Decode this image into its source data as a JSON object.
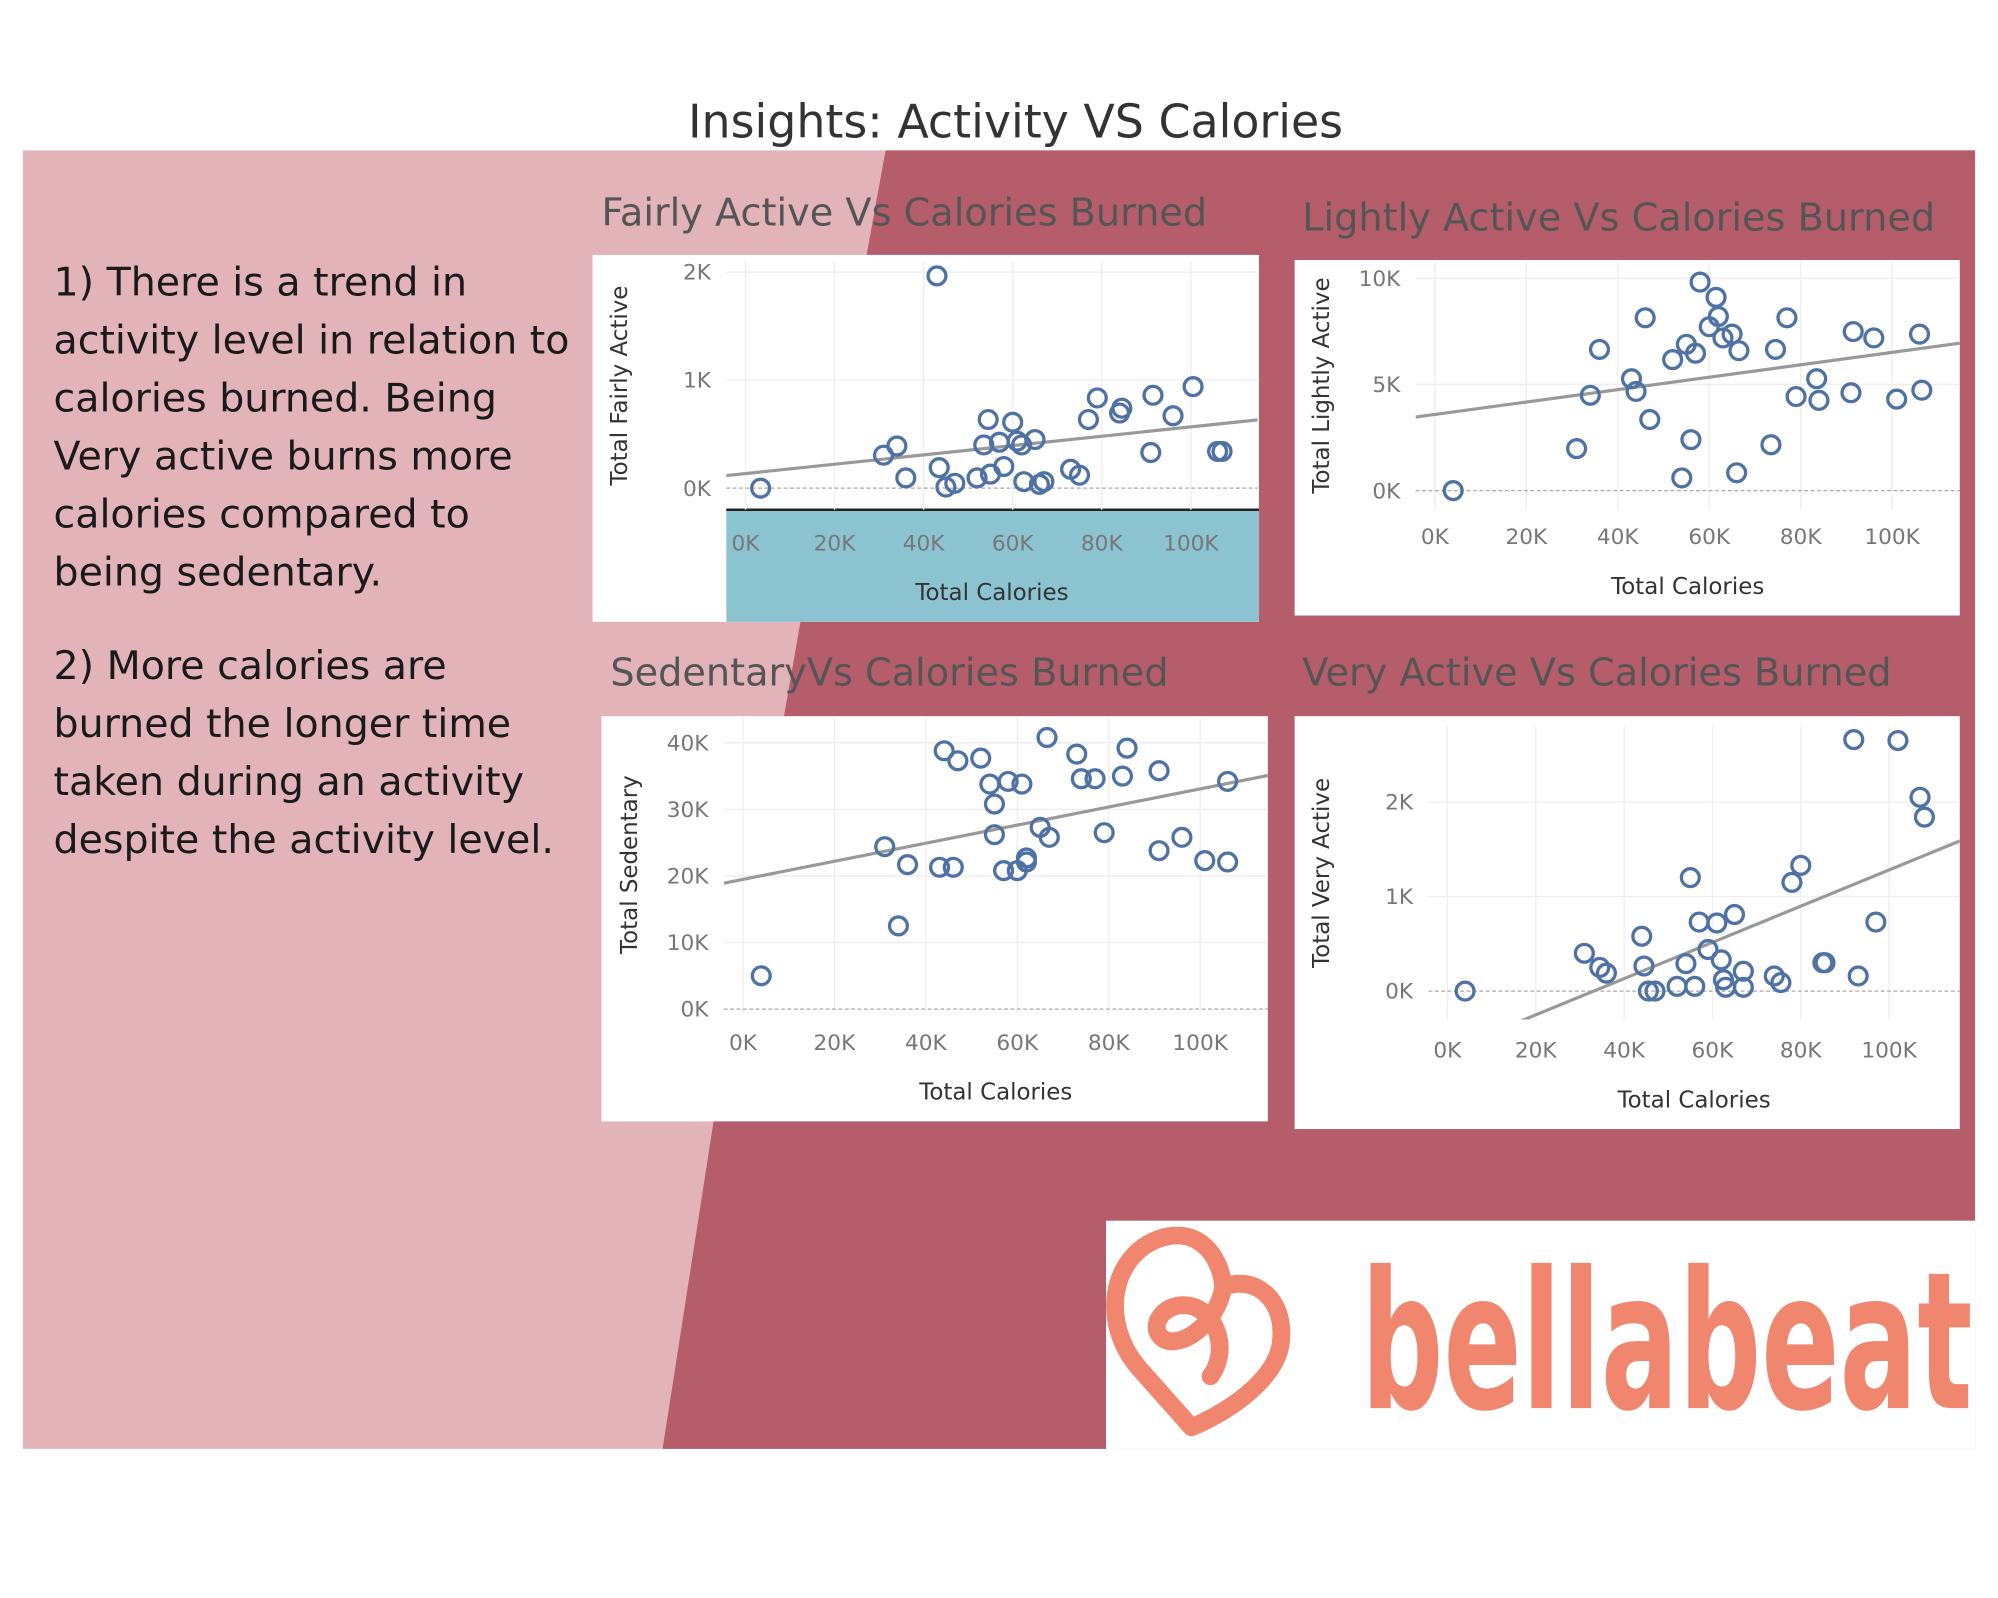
{
  "title": "Insights: Activity VS Calories",
  "insights": [
    [
      "1) There is a trend in",
      "activity level in relation to",
      "calories burned. Being",
      "Very active burns more",
      "calories compared to",
      "being sedentary."
    ],
    [
      "2) More calories are",
      "burned the longer time",
      "taken during an activity",
      "despite the activity level."
    ]
  ],
  "logo": "bellabeat",
  "chart_data": [
    {
      "type": "scatter",
      "title": "Fairly Active Vs Calories Burned",
      "x_label": "Total Calories",
      "y_label": "Total Fairly Active",
      "x": [
        3400,
        43000,
        31000,
        34000,
        36000,
        43500,
        45000,
        47000,
        52000,
        54500,
        53500,
        55000,
        57000,
        58000,
        60000,
        61000,
        62000,
        62500,
        65000,
        66000,
        67000,
        73000,
        75000,
        77000,
        79000,
        84000,
        84500,
        91000,
        91500,
        96000,
        100500,
        106000,
        107000
      ],
      "values": [
        0,
        1965,
        305,
        390,
        95,
        190,
        10,
        45,
        95,
        635,
        400,
        130,
        425,
        200,
        610,
        435,
        400,
        60,
        450,
        35,
        60,
        175,
        120,
        635,
        835,
        695,
        740,
        330,
        860,
        670,
        940,
        340,
        340
      ],
      "color": "#4e72a4",
      "trendline": true,
      "grid": true,
      "xlim": [
        -4300,
        115000
      ],
      "ylim": [
        -200,
        2100
      ],
      "xticks": [
        {
          "value": 0,
          "label": "0K"
        },
        {
          "value": 20000,
          "label": "20K"
        },
        {
          "value": 40000,
          "label": "40K"
        },
        {
          "value": 60000,
          "label": "60K"
        },
        {
          "value": 80000,
          "label": "80K"
        },
        {
          "value": 100000,
          "label": "100K"
        }
      ],
      "yticks": [
        {
          "value": 0,
          "label": "0K"
        },
        {
          "value": 1000,
          "label": "1K"
        },
        {
          "value": 2000,
          "label": "2K"
        }
      ]
    },
    {
      "type": "scatter",
      "title": "Lightly Active Vs Calories Burned",
      "x_label": "Total Calories",
      "y_label": "Total Lightly Active",
      "x": [
        4000,
        31000,
        34000,
        36000,
        43000,
        44000,
        46000,
        47000,
        52000,
        54000,
        55000,
        56000,
        57000,
        58000,
        60000,
        61500,
        62000,
        63000,
        65000,
        66500,
        66000,
        73500,
        74500,
        77000,
        79000,
        83500,
        84000,
        91000,
        91500,
        96000,
        101000,
        106000,
        106500
      ],
      "values": [
        0,
        1980,
        4490,
        6650,
        5270,
        4670,
        8140,
        3350,
        6170,
        600,
        6890,
        2400,
        6470,
        9820,
        7720,
        9100,
        8200,
        7190,
        7370,
        6590,
        840,
        2160,
        6650,
        8140,
        4430,
        5270,
        4250,
        4610,
        7490,
        7190,
        4310,
        7370,
        4730
      ],
      "color": "#4e72a4",
      "trendline": true,
      "grid": true,
      "xlim": [
        -4200,
        114800
      ],
      "ylim": [
        -900,
        10800
      ],
      "xticks": [
        {
          "value": 0,
          "label": "0K"
        },
        {
          "value": 20000,
          "label": "20K"
        },
        {
          "value": 40000,
          "label": "40K"
        },
        {
          "value": 60000,
          "label": "60K"
        },
        {
          "value": 80000,
          "label": "80K"
        },
        {
          "value": 100000,
          "label": "100K"
        }
      ],
      "yticks": [
        {
          "value": 0,
          "label": "0K"
        },
        {
          "value": 5000,
          "label": "5K"
        },
        {
          "value": 10000,
          "label": "10K"
        }
      ]
    },
    {
      "type": "scatter",
      "title": "SedentaryVs Calories Burned",
      "x_label": "Total Calories",
      "y_label": "Total Sedentary",
      "x": [
        4000,
        31000,
        34000,
        36000,
        43000,
        44000,
        46000,
        47000,
        52000,
        54000,
        55000,
        55000,
        57000,
        58000,
        60000,
        61000,
        62000,
        62000,
        65000,
        66500,
        67000,
        73000,
        74000,
        77000,
        79000,
        83000,
        84000,
        91000,
        91000,
        96000,
        101000,
        106000,
        106000
      ],
      "values": [
        5000,
        24400,
        12500,
        21700,
        21300,
        38800,
        21300,
        37300,
        37700,
        33800,
        26200,
        30800,
        20800,
        34200,
        20800,
        33800,
        22700,
        22100,
        27300,
        40800,
        25800,
        38300,
        34600,
        34600,
        26500,
        35000,
        39200,
        23800,
        35800,
        25800,
        22300,
        22100,
        34200
      ],
      "color": "#4e72a4",
      "trendline": true,
      "grid": true,
      "xlim": [
        -4200,
        114800
      ],
      "ylim": [
        -600,
        44000
      ],
      "xticks": [
        {
          "value": 0,
          "label": "0K"
        },
        {
          "value": 20000,
          "label": "20K"
        },
        {
          "value": 40000,
          "label": "40K"
        },
        {
          "value": 60000,
          "label": "60K"
        },
        {
          "value": 80000,
          "label": "80K"
        },
        {
          "value": 100000,
          "label": "100K"
        }
      ],
      "yticks": [
        {
          "value": 0,
          "label": "0K"
        },
        {
          "value": 10000,
          "label": "10K"
        },
        {
          "value": 20000,
          "label": "20K"
        },
        {
          "value": 30000,
          "label": "30K"
        },
        {
          "value": 40000,
          "label": "40K"
        }
      ]
    },
    {
      "type": "scatter",
      "title": "Very Active Vs Calories Burned",
      "x_label": "Total Calories",
      "y_label": "Total Very Active",
      "x": [
        4000,
        31000,
        34500,
        36000,
        44000,
        44500,
        45500,
        47000,
        52000,
        54000,
        55000,
        56000,
        57000,
        59000,
        61000,
        62000,
        62500,
        63000,
        65000,
        67000,
        67000,
        74000,
        75500,
        78000,
        80000,
        85000,
        85500,
        92000,
        93000,
        97000,
        102000,
        107000,
        108000
      ],
      "values": [
        0,
        400,
        250,
        190,
        580,
        265,
        0,
        0,
        50,
        290,
        1200,
        50,
        730,
        440,
        720,
        330,
        120,
        40,
        810,
        210,
        40,
        160,
        90,
        1150,
        1330,
        300,
        300,
        2660,
        160,
        730,
        2650,
        2050,
        1840
      ],
      "color": "#4e72a4",
      "trendline": true,
      "grid": true,
      "xlim": [
        -4300,
        116000
      ],
      "ylim": [
        -300,
        2800
      ],
      "xticks": [
        {
          "value": 0,
          "label": "0K"
        },
        {
          "value": 20000,
          "label": "20K"
        },
        {
          "value": 40000,
          "label": "40K"
        },
        {
          "value": 60000,
          "label": "60K"
        },
        {
          "value": 80000,
          "label": "80K"
        },
        {
          "value": 100000,
          "label": "100K"
        }
      ],
      "yticks": [
        {
          "value": 0,
          "label": "0K"
        },
        {
          "value": 1000,
          "label": "1K"
        },
        {
          "value": 2000,
          "label": "2K"
        }
      ]
    }
  ]
}
